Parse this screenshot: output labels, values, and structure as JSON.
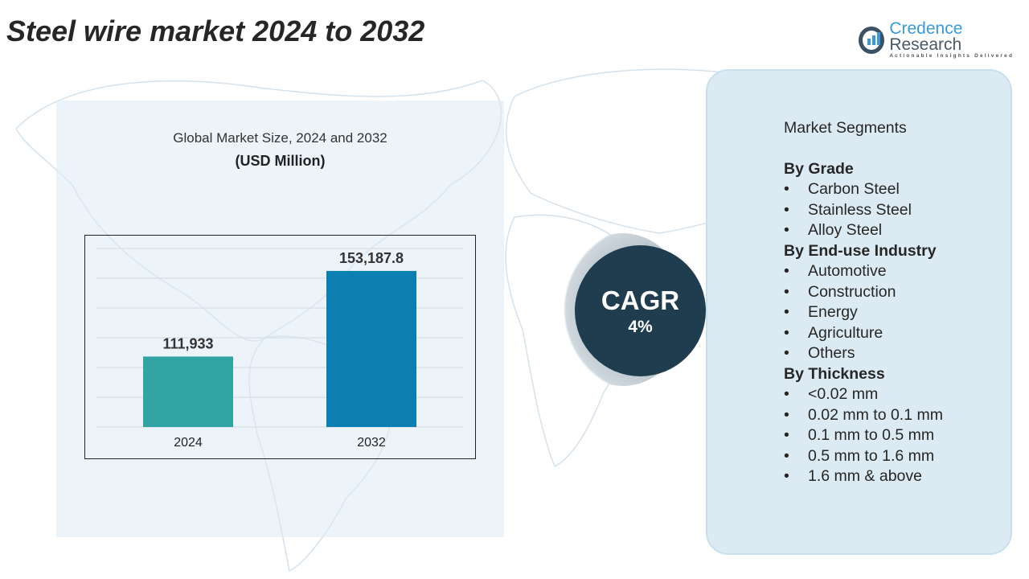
{
  "title": "Steel wire market 2024 to 2032",
  "logo": {
    "name_1": "Credence",
    "name_2": "Research",
    "tagline": "Actionable Insights Delivered"
  },
  "chart_data": {
    "type": "bar",
    "title": "Global Market Size, 2024 and 2032",
    "unit": "(USD Million)",
    "categories": [
      "2024",
      "2032"
    ],
    "values": [
      111933,
      153187.8
    ],
    "value_labels": [
      "111,933",
      "153,187.8"
    ],
    "colors": [
      "#32a3a3",
      "#0a7fb0"
    ],
    "ylim": [
      78000,
      164000
    ],
    "grid": true
  },
  "cagr": {
    "label": "CAGR",
    "value": "4%"
  },
  "segments": {
    "heading": "Market Segments",
    "groups": [
      {
        "title": "By Grade",
        "items": [
          "Carbon Steel",
          "Stainless Steel",
          "Alloy Steel"
        ]
      },
      {
        "title": "By End-use Industry",
        "items": [
          "Automotive",
          "Construction",
          "Energy",
          "Agriculture",
          "Others"
        ]
      },
      {
        "title": "By Thickness",
        "items": [
          "<0.02 mm",
          "0.02 mm to 0.1 mm",
          "0.1 mm to 0.5 mm",
          "0.5 mm to 1.6 mm",
          "1.6 mm & above"
        ]
      }
    ]
  }
}
